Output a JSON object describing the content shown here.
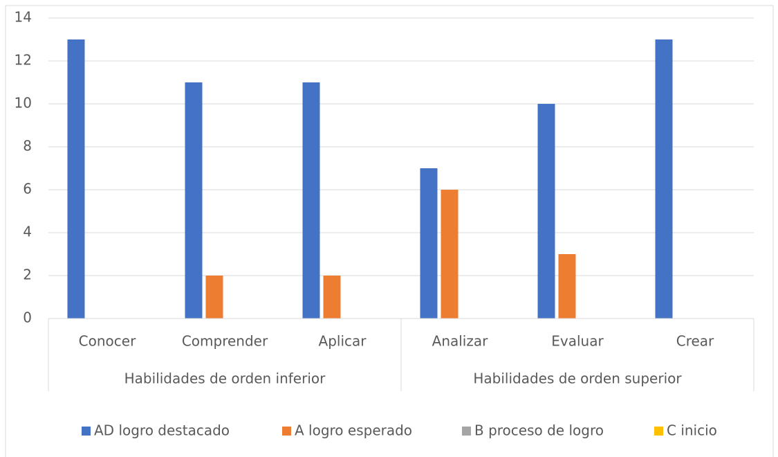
{
  "chart_data": {
    "type": "bar",
    "groups": [
      {
        "name": "Habilidades de orden inferior",
        "categories": [
          "Conocer",
          "Comprender",
          "Aplicar"
        ]
      },
      {
        "name": "Habilidades de orden superior",
        "categories": [
          "Analizar",
          "Evaluar",
          "Crear"
        ]
      }
    ],
    "series": [
      {
        "name": "AD logro destacado",
        "color": "#4472c4",
        "values": [
          13,
          11,
          11,
          7,
          10,
          13
        ]
      },
      {
        "name": "A logro esperado",
        "color": "#ed7d31",
        "values": [
          0,
          2,
          2,
          6,
          3,
          0
        ]
      },
      {
        "name": "B proceso de logro",
        "color": "#a5a5a5",
        "values": [
          0,
          0,
          0,
          0,
          0,
          0
        ]
      },
      {
        "name": "C inicio",
        "color": "#ffc000",
        "values": [
          0,
          0,
          0,
          0,
          0,
          0
        ]
      }
    ],
    "ylim": [
      0,
      14
    ],
    "yticks": [
      0,
      2,
      4,
      6,
      8,
      10,
      12,
      14
    ],
    "grid": true,
    "legend": "bottom"
  }
}
